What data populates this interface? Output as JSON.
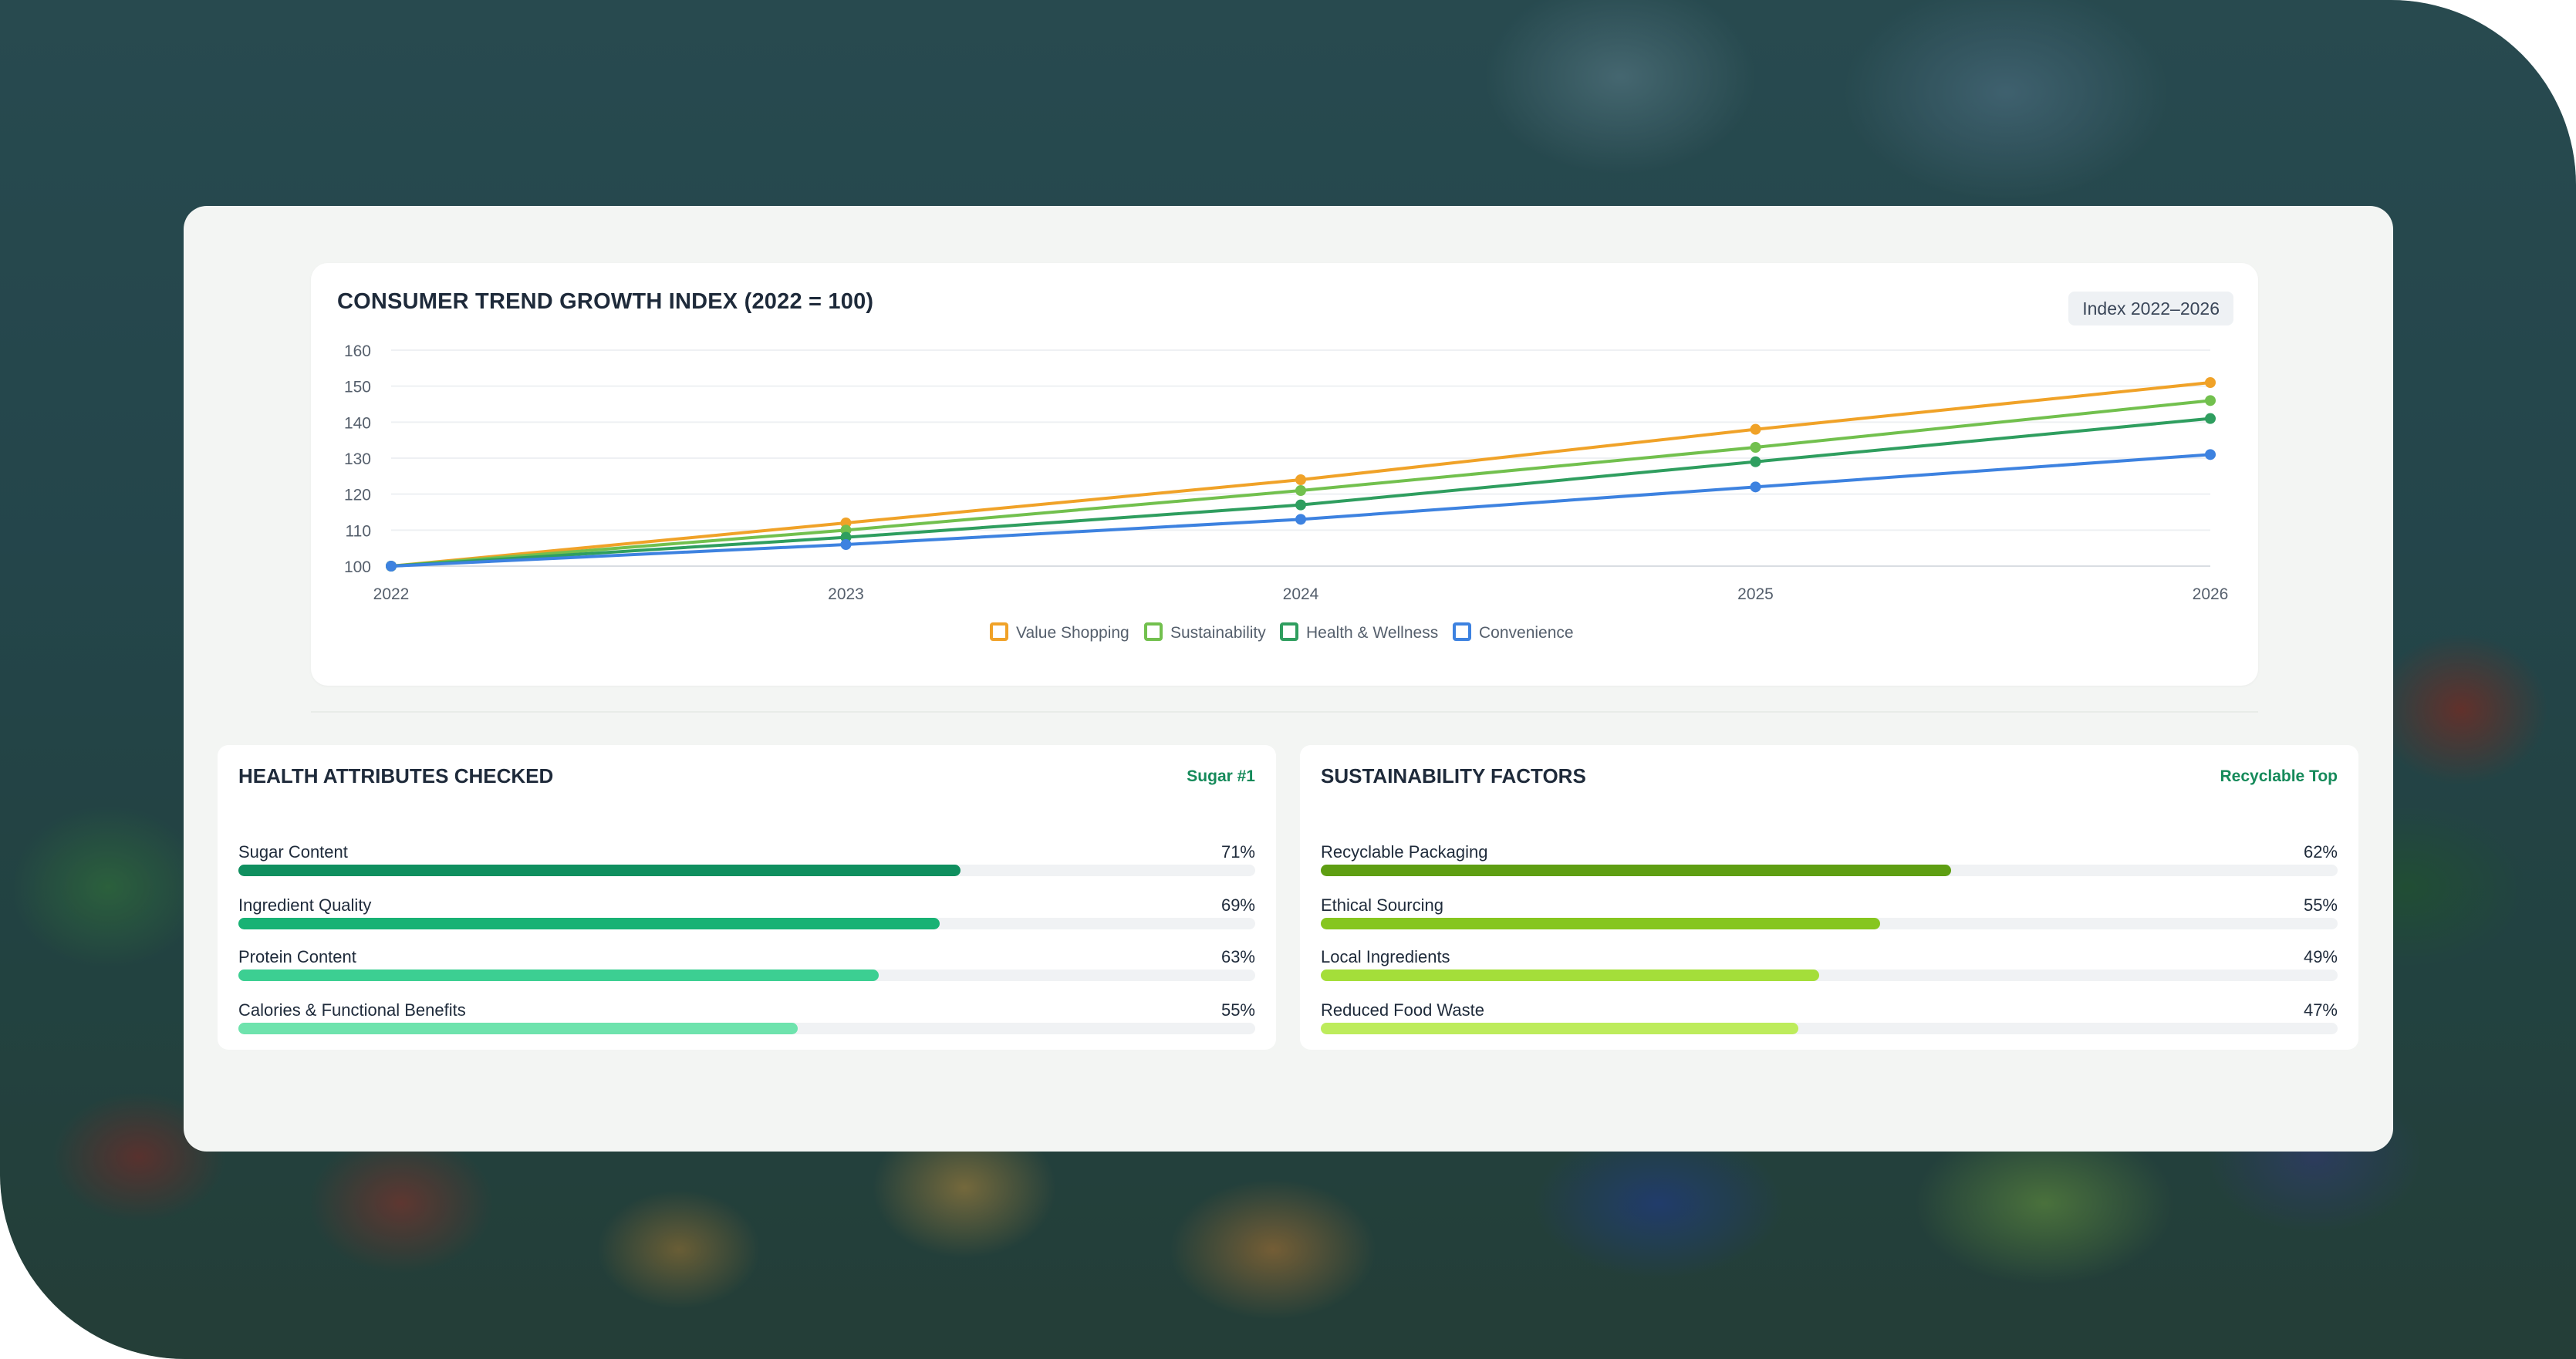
{
  "chart_card": {
    "title": "CONSUMER TREND GROWTH INDEX (2022 = 100)",
    "badge": "Index 2022–2026"
  },
  "chart_data": {
    "type": "line",
    "title": "CONSUMER TREND GROWTH INDEX (2022 = 100)",
    "x": [
      "2022",
      "2023",
      "2024",
      "2025",
      "2026"
    ],
    "y_ticks": [
      "100",
      "110",
      "120",
      "130",
      "140",
      "150",
      "160"
    ],
    "ylim": [
      100,
      160
    ],
    "grid": true,
    "legend": "bottom-center",
    "series": [
      {
        "name": "Value Shopping",
        "color": "#f0a228",
        "values": [
          100,
          112,
          124,
          138,
          151
        ]
      },
      {
        "name": "Sustainability",
        "color": "#72c04e",
        "values": [
          100,
          110,
          121,
          133,
          146
        ]
      },
      {
        "name": "Health & Wellness",
        "color": "#2f9e5f",
        "values": [
          100,
          108,
          117,
          129,
          141
        ]
      },
      {
        "name": "Convenience",
        "color": "#3d82e0",
        "values": [
          100,
          106,
          113,
          122,
          131
        ]
      }
    ]
  },
  "health": {
    "title": "HEALTH ATTRIBUTES CHECKED",
    "tag": "Sugar #1",
    "items": [
      {
        "label": "Sugar Content",
        "value": "71%",
        "pct": 71,
        "color": "#0f8f5f"
      },
      {
        "label": "Ingredient Quality",
        "value": "69%",
        "pct": 69,
        "color": "#18b274"
      },
      {
        "label": "Protein Content",
        "value": "63%",
        "pct": 63,
        "color": "#3ccf92"
      },
      {
        "label": "Calories & Functional Benefits",
        "value": "55%",
        "pct": 55,
        "color": "#6ee3ad"
      }
    ]
  },
  "sustainability": {
    "title": "SUSTAINABILITY FACTORS",
    "tag": "Recyclable Top",
    "items": [
      {
        "label": "Recyclable Packaging",
        "value": "62%",
        "pct": 62,
        "color": "#5e9e12"
      },
      {
        "label": "Ethical Sourcing",
        "value": "55%",
        "pct": 55,
        "color": "#86c61f"
      },
      {
        "label": "Local Ingredients",
        "value": "49%",
        "pct": 49,
        "color": "#a4de3a"
      },
      {
        "label": "Reduced Food Waste",
        "value": "47%",
        "pct": 47,
        "color": "#bdec5c"
      }
    ]
  }
}
